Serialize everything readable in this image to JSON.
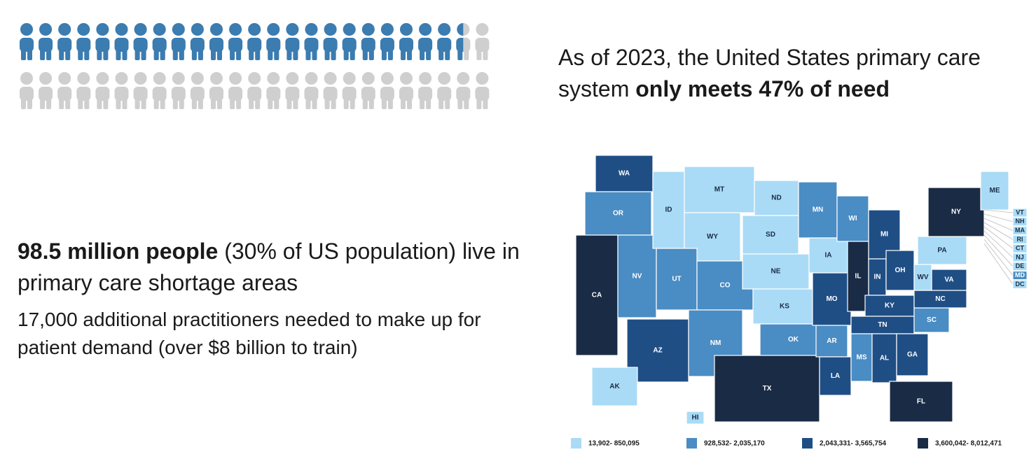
{
  "icon_array": {
    "percent": 47,
    "filled_color": "#3b7cb1",
    "empty_color": "#cfcfcf"
  },
  "headline": {
    "text": "As of 2023, the United States primary care system",
    "emphasis": "only meets 47% of need"
  },
  "stat": {
    "emphasis": "98.5 million people",
    "text": "(30% of US population) live in primary care shortage areas"
  },
  "note": "17,000 additional practitioners needed to make up for patient demand (over $8 billion to train)",
  "map": {
    "legend": [
      {
        "label": "13,902- 850,095",
        "color": "#a9dbf6"
      },
      {
        "label": "928,532- 2,035,170",
        "color": "#4a8cc4"
      },
      {
        "label": "2,043,331- 3,565,754",
        "color": "#1f4e85"
      },
      {
        "label": "3,600,042- 8,012,471",
        "color": "#1a2b45"
      }
    ],
    "states": [
      {
        "abbr": "WA",
        "color": "#1f4e85"
      },
      {
        "abbr": "OR",
        "color": "#4a8cc4"
      },
      {
        "abbr": "CA",
        "color": "#1a2b45"
      },
      {
        "abbr": "NV",
        "color": "#4a8cc4"
      },
      {
        "abbr": "ID",
        "color": "#a9dbf6"
      },
      {
        "abbr": "MT",
        "color": "#a9dbf6"
      },
      {
        "abbr": "WY",
        "color": "#a9dbf6"
      },
      {
        "abbr": "UT",
        "color": "#4a8cc4"
      },
      {
        "abbr": "CO",
        "color": "#4a8cc4"
      },
      {
        "abbr": "AZ",
        "color": "#1f4e85"
      },
      {
        "abbr": "NM",
        "color": "#4a8cc4"
      },
      {
        "abbr": "ND",
        "color": "#a9dbf6"
      },
      {
        "abbr": "SD",
        "color": "#a9dbf6"
      },
      {
        "abbr": "NE",
        "color": "#a9dbf6"
      },
      {
        "abbr": "KS",
        "color": "#a9dbf6"
      },
      {
        "abbr": "OK",
        "color": "#4a8cc4"
      },
      {
        "abbr": "TX",
        "color": "#1a2b45"
      },
      {
        "abbr": "MN",
        "color": "#4a8cc4"
      },
      {
        "abbr": "IA",
        "color": "#a9dbf6"
      },
      {
        "abbr": "MO",
        "color": "#1f4e85"
      },
      {
        "abbr": "AR",
        "color": "#4a8cc4"
      },
      {
        "abbr": "LA",
        "color": "#1f4e85"
      },
      {
        "abbr": "WI",
        "color": "#4a8cc4"
      },
      {
        "abbr": "IL",
        "color": "#1a2b45"
      },
      {
        "abbr": "MI",
        "color": "#1f4e85"
      },
      {
        "abbr": "IN",
        "color": "#1f4e85"
      },
      {
        "abbr": "OH",
        "color": "#1f4e85"
      },
      {
        "abbr": "KY",
        "color": "#1f4e85"
      },
      {
        "abbr": "TN",
        "color": "#1f4e85"
      },
      {
        "abbr": "MS",
        "color": "#4a8cc4"
      },
      {
        "abbr": "AL",
        "color": "#1f4e85"
      },
      {
        "abbr": "GA",
        "color": "#1f4e85"
      },
      {
        "abbr": "FL",
        "color": "#1a2b45"
      },
      {
        "abbr": "SC",
        "color": "#4a8cc4"
      },
      {
        "abbr": "NC",
        "color": "#1f4e85"
      },
      {
        "abbr": "VA",
        "color": "#1f4e85"
      },
      {
        "abbr": "WV",
        "color": "#a9dbf6"
      },
      {
        "abbr": "PA",
        "color": "#a9dbf6"
      },
      {
        "abbr": "NY",
        "color": "#1a2b45"
      },
      {
        "abbr": "ME",
        "color": "#a9dbf6"
      },
      {
        "abbr": "AK",
        "color": "#a9dbf6"
      },
      {
        "abbr": "HI",
        "color": "#a9dbf6"
      },
      {
        "abbr": "VT",
        "color": "#a9dbf6"
      },
      {
        "abbr": "NH",
        "color": "#a9dbf6"
      },
      {
        "abbr": "MA",
        "color": "#a9dbf6"
      },
      {
        "abbr": "RI",
        "color": "#a9dbf6"
      },
      {
        "abbr": "CT",
        "color": "#a9dbf6"
      },
      {
        "abbr": "NJ",
        "color": "#a9dbf6"
      },
      {
        "abbr": "DE",
        "color": "#a9dbf6"
      },
      {
        "abbr": "MD",
        "color": "#4a8cc4"
      },
      {
        "abbr": "DC",
        "color": "#a9dbf6"
      }
    ]
  }
}
